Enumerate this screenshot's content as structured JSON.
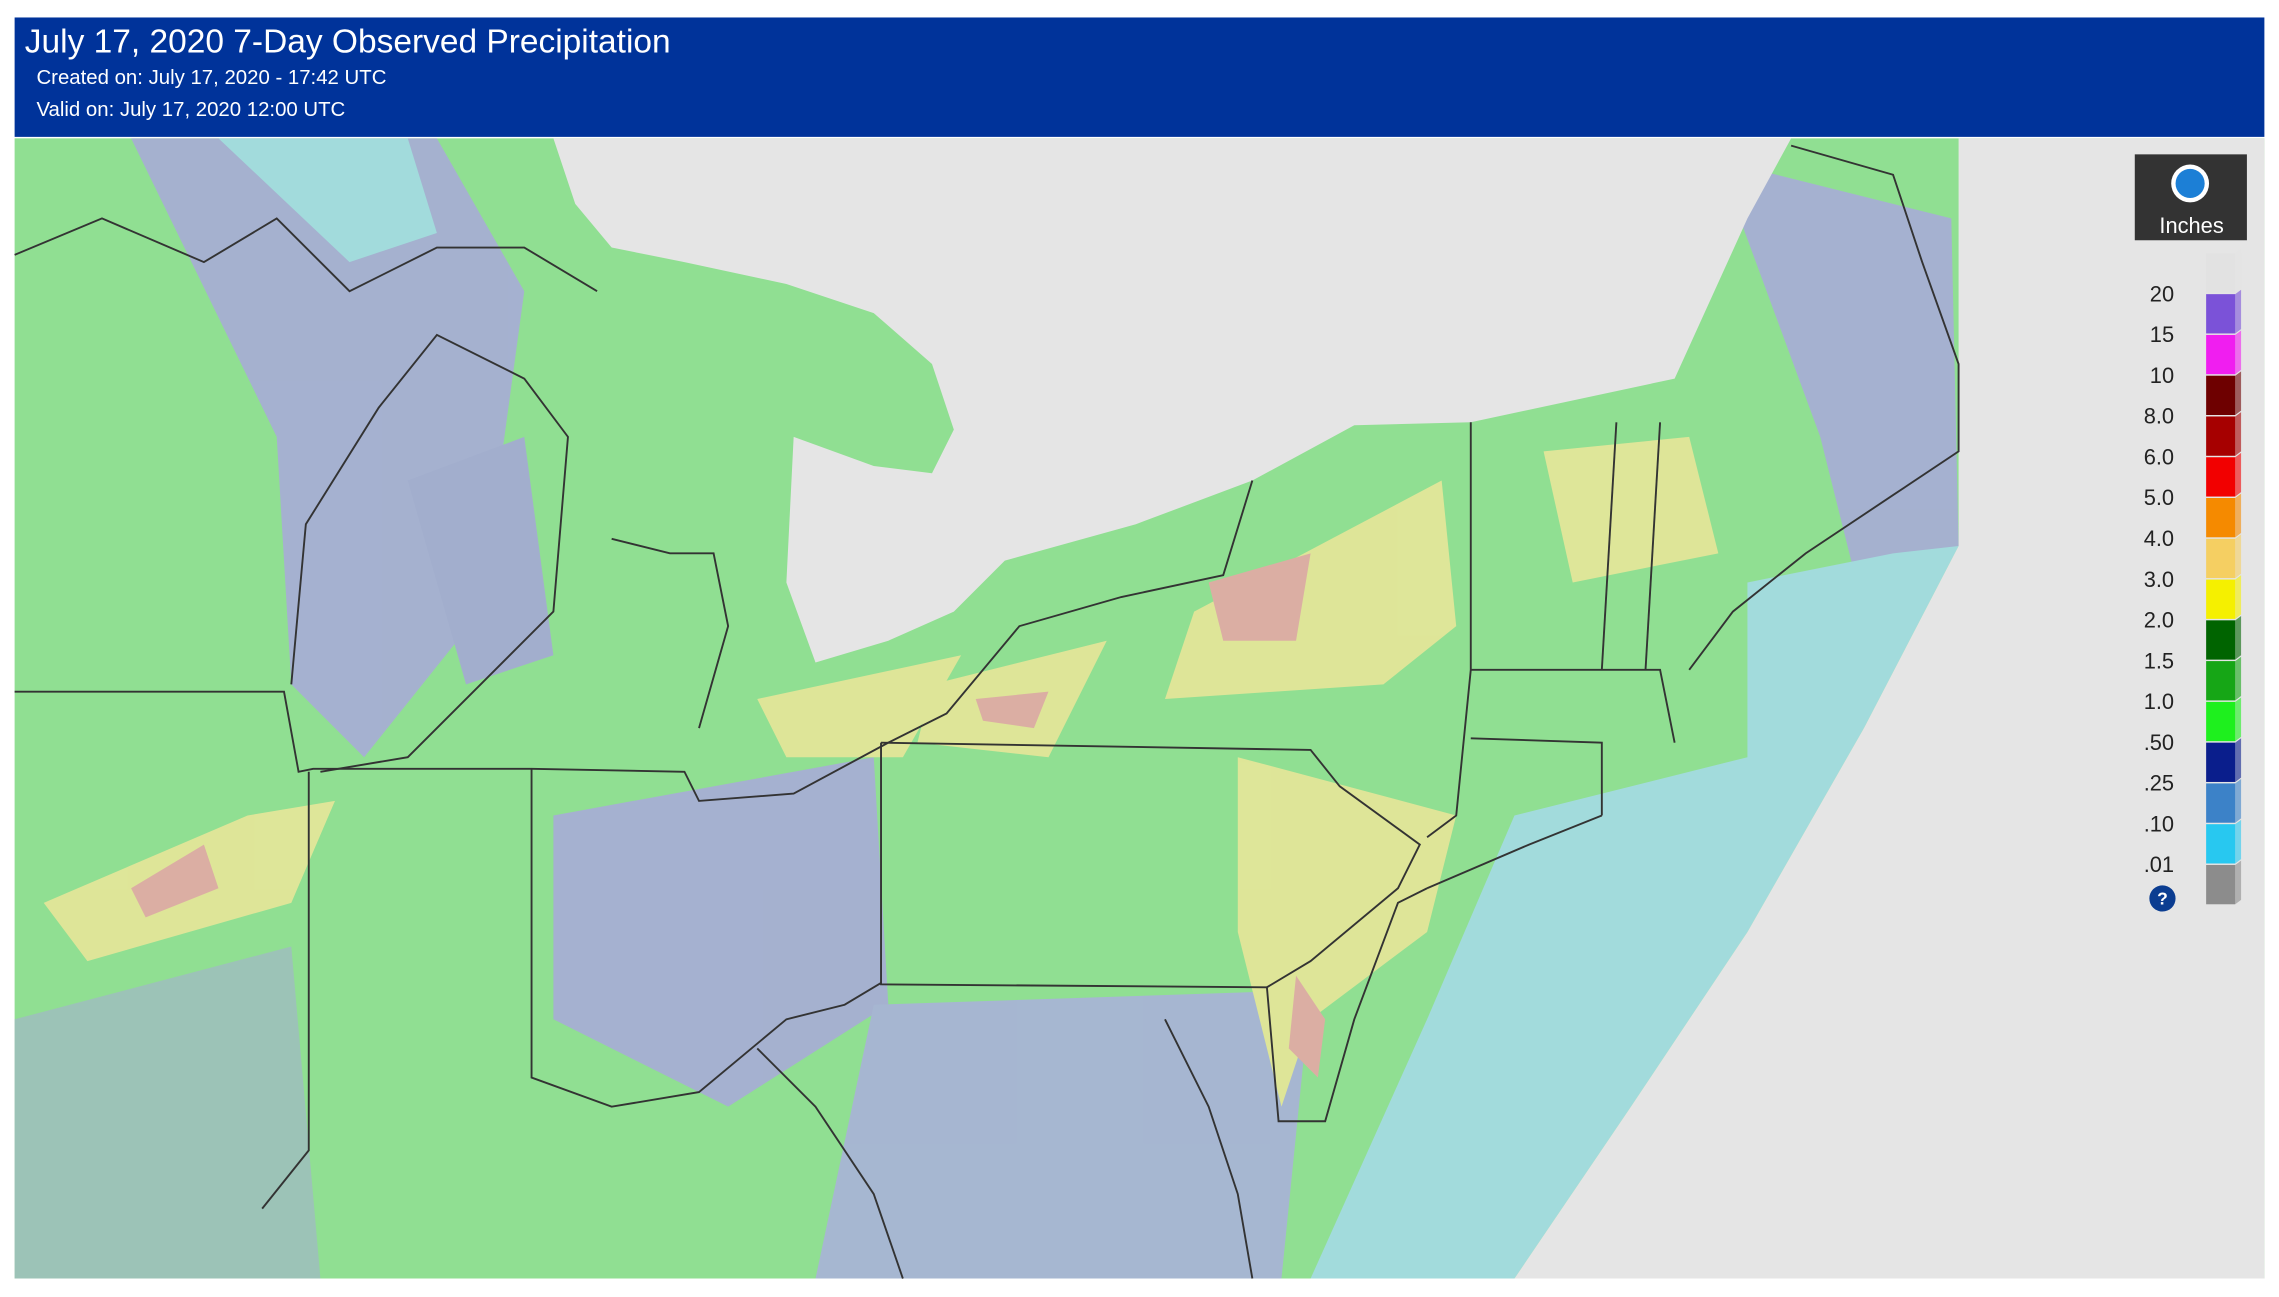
{
  "header": {
    "title": "July 17, 2020 7-Day Observed Precipitation",
    "created": "Created on: July 17, 2020 - 17:42 UTC",
    "valid": "Valid on: July 17, 2020 12:00 UTC"
  },
  "legend": {
    "unit": "Inches",
    "help": "?",
    "swatches": [
      "#e2e2e2",
      "#7b52d8",
      "#f01ef0",
      "#6e0000",
      "#a60000",
      "#f20000",
      "#f58a00",
      "#f5cf62",
      "#f5f000",
      "#006400",
      "#16a616",
      "#1ef01e",
      "#0a1e8c",
      "#3c82c8",
      "#28c8f0",
      "#8c8c8c"
    ],
    "labels": [
      "20",
      "15",
      "10",
      "8.0",
      "6.0",
      "5.0",
      "4.0",
      "3.0",
      "2.0",
      "1.5",
      "1.0",
      ".50",
      ".25",
      ".10",
      ".01"
    ]
  }
}
